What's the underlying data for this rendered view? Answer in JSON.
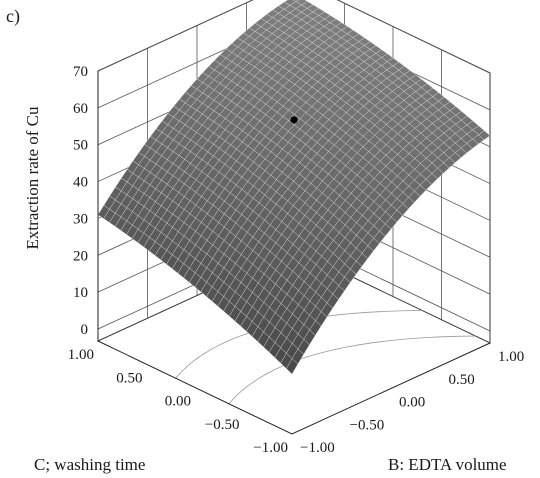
{
  "panel_label": "c)",
  "chart_data": {
    "type": "surface3d",
    "title": "",
    "zlabel": "Extraction rate of Cu",
    "xlabel": "B: EDTA volume",
    "ylabel": "C; washing time",
    "zlim": [
      0,
      70
    ],
    "z_ticks": [
      "70",
      "60",
      "50",
      "40",
      "30",
      "20",
      "10",
      "0"
    ],
    "b_ticks": [
      "1.00",
      "0.50",
      "0.00",
      "−0.50",
      "−1.00"
    ],
    "c_ticks": [
      "1.00",
      "0.50",
      "0.00",
      "−0.50",
      "−1.00"
    ],
    "grid": true,
    "design_point": {
      "B": 0.0,
      "C": 0.0,
      "Z": 57
    },
    "surface_corners": [
      {
        "B": -1,
        "C": 1,
        "Z": 31
      },
      {
        "B": -1,
        "C": -1,
        "Z": 13
      },
      {
        "B": 1,
        "C": -1,
        "Z": 53
      },
      {
        "B": 1,
        "C": 1,
        "Z": 66
      }
    ]
  }
}
